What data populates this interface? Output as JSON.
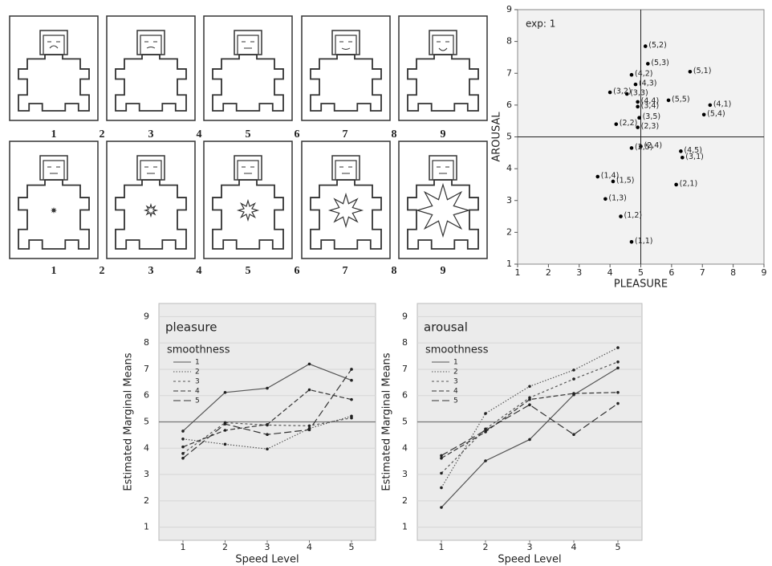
{
  "sam": {
    "rows": [
      {
        "labels": [
          "1",
          "2",
          "3",
          "4",
          "5",
          "6",
          "7",
          "8",
          "9"
        ]
      },
      {
        "labels": [
          "1",
          "2",
          "3",
          "4",
          "5",
          "6",
          "7",
          "8",
          "9"
        ]
      }
    ]
  },
  "chart_data": [
    {
      "type": "scatter",
      "annotation": "exp: 1",
      "xlabel": "PLEASURE",
      "ylabel": "AROUSAL",
      "x": [
        5.15,
        5.23,
        6.6,
        4.7,
        4.83,
        4.0,
        4.9,
        4.55,
        5.9,
        7.25,
        4.9,
        7.05,
        4.95,
        4.2,
        4.9,
        5.0,
        4.7,
        6.3,
        6.35,
        3.6,
        4.1,
        6.15,
        3.85,
        4.35,
        4.7
      ],
      "values": [
        7.85,
        7.3,
        7.05,
        6.95,
        6.65,
        6.4,
        6.1,
        6.35,
        6.15,
        6.0,
        5.95,
        5.7,
        5.6,
        5.4,
        5.3,
        4.7,
        4.65,
        4.55,
        4.35,
        3.75,
        3.6,
        3.5,
        3.05,
        2.5,
        1.7
      ],
      "point_labels": [
        "(5,2)",
        "(5,3)",
        "(5,1)",
        "(4,2)",
        "(4,3)",
        "(3,2)",
        "(4,4)",
        "(3,3)",
        "(5,5)",
        "(4,1)",
        "(3,4)",
        "(5,4)",
        "(3,5)",
        "(2,2)",
        "(2,3)",
        "(2,4)",
        "(2,5)",
        "(4,5)",
        "(3,1)",
        "(1,4)",
        "(1,5)",
        "(2,1)",
        "(1,3)",
        "(1,2)",
        "(1,1)"
      ],
      "color": "#000000",
      "xlim": [
        1,
        9
      ],
      "ylim": [
        1,
        9
      ],
      "xticks": [
        1,
        2,
        3,
        4,
        5,
        6,
        7,
        8,
        9
      ],
      "yticks": [
        1,
        2,
        3,
        4,
        5,
        6,
        7,
        8,
        9
      ],
      "hlines": [
        5
      ],
      "vlines": [
        5
      ],
      "background": "#f2f2f2"
    },
    {
      "type": "line",
      "annotation": "pleasure",
      "legend_title": "smoothness",
      "xlabel": "Speed Level",
      "ylabel": "Estimated Marginal Means",
      "categories": [
        "1",
        "2",
        "3",
        "4",
        "5"
      ],
      "series": [
        {
          "name": "1",
          "color": "#555555",
          "dash": "none",
          "values": [
            4.65,
            6.12,
            6.28,
            7.2,
            6.58
          ]
        },
        {
          "name": "2",
          "color": "#555555",
          "dash": "1.5,2",
          "values": [
            4.35,
            4.15,
            3.97,
            4.75,
            5.22
          ]
        },
        {
          "name": "3",
          "color": "#555555",
          "dash": "3,3",
          "values": [
            3.8,
            4.97,
            4.88,
            4.85,
            5.15
          ]
        },
        {
          "name": "4",
          "color": "#333333",
          "dash": "6,3",
          "values": [
            4.05,
            4.68,
            4.9,
            6.22,
            5.85
          ]
        },
        {
          "name": "5",
          "color": "#333333",
          "dash": "9,4",
          "values": [
            3.62,
            4.92,
            4.52,
            4.7,
            7.0
          ]
        }
      ],
      "ylim": [
        0.5,
        9.5
      ],
      "yticks": [
        1,
        2,
        3,
        4,
        5,
        6,
        7,
        8,
        9
      ],
      "hlines": [
        5
      ],
      "grid": true,
      "background": "#ebebeb"
    },
    {
      "type": "line",
      "annotation": "arousal",
      "legend_title": "smoothness",
      "xlabel": "Speed Level",
      "ylabel": "Estimated Marginal Means",
      "categories": [
        "1",
        "2",
        "3",
        "4",
        "5"
      ],
      "series": [
        {
          "name": "1",
          "color": "#555555",
          "dash": "none",
          "values": [
            1.75,
            3.52,
            4.33,
            6.03,
            7.05
          ]
        },
        {
          "name": "2",
          "color": "#555555",
          "dash": "1.5,2",
          "values": [
            2.5,
            5.32,
            6.35,
            6.97,
            7.82
          ]
        },
        {
          "name": "3",
          "color": "#555555",
          "dash": "3,3",
          "values": [
            3.05,
            4.73,
            5.92,
            6.63,
            7.28
          ]
        },
        {
          "name": "4",
          "color": "#333333",
          "dash": "6,3",
          "values": [
            3.62,
            4.62,
            5.85,
            6.08,
            6.12
          ]
        },
        {
          "name": "5",
          "color": "#333333",
          "dash": "9,4",
          "values": [
            3.72,
            4.68,
            5.65,
            4.52,
            5.7
          ]
        }
      ],
      "ylim": [
        0.5,
        9.5
      ],
      "yticks": [
        1,
        2,
        3,
        4,
        5,
        6,
        7,
        8,
        9
      ],
      "hlines": [
        5
      ],
      "grid": true,
      "background": "#ebebeb"
    }
  ]
}
